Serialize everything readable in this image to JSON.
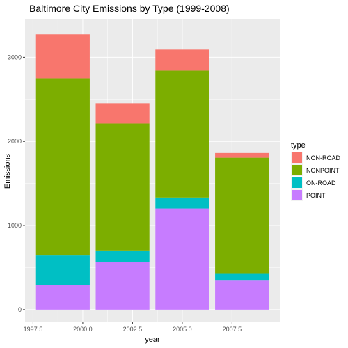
{
  "chart_data": {
    "type": "bar",
    "stacked": true,
    "title": "Baltimore City Emissions by Type (1999-2008)",
    "xlabel": "year",
    "ylabel": "Emissions",
    "x": [
      1999,
      2002,
      2005,
      2008
    ],
    "xlim": [
      1997.1,
      2009.9
    ],
    "ylim": [
      -150,
      3450
    ],
    "xticks": [
      1997.5,
      2000.0,
      2002.5,
      2005.0,
      2007.5
    ],
    "xtick_labels": [
      "1997.5",
      "2000.0",
      "2002.5",
      "2005.0",
      "2007.5"
    ],
    "yticks": [
      0,
      1000,
      2000,
      3000
    ],
    "ytick_labels": [
      "0",
      "1000",
      "2000",
      "3000"
    ],
    "bar_width": 2.7,
    "grid": true,
    "legend": {
      "title": "type",
      "position": "right",
      "labels": [
        "NON-ROAD",
        "NONPOINT",
        "ON-ROAD",
        "POINT"
      ]
    },
    "series": [
      {
        "name": "POINT",
        "color": "#C77CFF",
        "values": [
          296.8,
          569.3,
          1202.5,
          344.9
        ]
      },
      {
        "name": "ON-ROAD",
        "color": "#00BFC4",
        "values": [
          346.8,
          134.3,
          130.4,
          88.3
        ]
      },
      {
        "name": "NONPOINT",
        "color": "#7CAE00",
        "values": [
          2107.6,
          1509.5,
          1509.5,
          1373.2
        ]
      },
      {
        "name": "NON-ROAD",
        "color": "#F8766D",
        "values": [
          522.9,
          240.8,
          248.9,
          55.8
        ]
      }
    ]
  }
}
